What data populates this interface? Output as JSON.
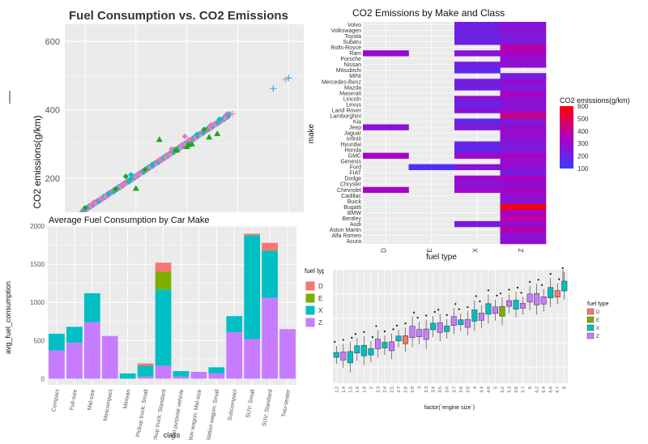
{
  "colors": {
    "panel_bg": "#ebebeb",
    "grid": "#ffffff",
    "D": "#f8766d",
    "E": "#7cae00",
    "X": "#00bfc4",
    "Z": "#c77cff",
    "scatter_green": "#1ea51e",
    "scatter_pink": "#f08cc8"
  },
  "chart_data": [
    {
      "type": "scatter",
      "title": "Fuel Consumption vs. CO2 Emissions",
      "xlabel": "",
      "ylabel": "CO2 emissions(g/km)",
      "ylim": [
        100,
        650
      ],
      "yticks": [
        "200",
        "400",
        "600"
      ],
      "grid": true,
      "series": [
        {
          "marker": "diamond",
          "points": [
            [
              5,
              113
            ],
            [
              5.8,
              128
            ],
            [
              6.6,
              140
            ],
            [
              7.3,
              155
            ],
            [
              8,
              168
            ],
            [
              8.7,
              182
            ],
            [
              9.4,
              196
            ],
            [
              10.1,
              210
            ],
            [
              10.9,
              225
            ],
            [
              11.6,
              240
            ],
            [
              12.3,
              253
            ],
            [
              13,
              268
            ],
            [
              13.8,
              283
            ],
            [
              14.5,
              298
            ],
            [
              15.2,
              312
            ],
            [
              16,
              328
            ],
            [
              16.7,
              342
            ],
            [
              17.4,
              356
            ],
            [
              18.2,
              372
            ],
            [
              18.9,
              386
            ],
            [
              9,
              205
            ],
            [
              9.5,
              210
            ],
            [
              13.5,
              285
            ],
            [
              14.8,
              322
            ]
          ]
        },
        {
          "marker": "triangle",
          "points": [
            [
              12.3,
              313
            ],
            [
              14,
              282
            ],
            [
              15,
              292
            ],
            [
              15.2,
              298
            ],
            [
              15.5,
              300
            ],
            [
              17.2,
              320
            ],
            [
              18,
              330
            ],
            [
              10,
              170
            ]
          ]
        },
        {
          "marker": "cross",
          "points": [
            [
              19,
              385
            ],
            [
              19.5,
              388
            ],
            [
              23.5,
              462
            ],
            [
              24.7,
              488
            ],
            [
              25,
              493
            ]
          ]
        }
      ]
    },
    {
      "type": "heatmap",
      "title": "CO2 Emissions by Make and Class",
      "xlabel": "fuel type",
      "ylabel": "make",
      "x": [
        "D",
        "E",
        "X",
        "Z"
      ],
      "y": [
        "Volvo",
        "Volkswagen",
        "Toyota",
        "Subaru",
        "Rolls-Royce",
        "Ram",
        "Porsche",
        "Nissan",
        "Mitsubishi",
        "MINI",
        "Mercedes-Benz",
        "Mazda",
        "Maserati",
        "Lincoln",
        "Lexus",
        "Land Rover",
        "Lamborghini",
        "Kia",
        "Jeep",
        "Jaguar",
        "Infiniti",
        "Hyundai",
        "Honda",
        "GMC",
        "Genesis",
        "Ford",
        "FIAT",
        "Dodge",
        "Chrysler",
        "Chevrolet",
        "Cadillac",
        "Buick",
        "Bugatti",
        "BMW",
        "Bentley",
        "Audi",
        "Aston Martin",
        "Alfa Romeo",
        "Acura"
      ],
      "values": [
        [
          null,
          null,
          220,
          270
        ],
        [
          null,
          null,
          210,
          260
        ],
        [
          null,
          null,
          200,
          250
        ],
        [
          null,
          null,
          210,
          240
        ],
        [
          null,
          null,
          null,
          380
        ],
        [
          290,
          null,
          270,
          340
        ],
        [
          null,
          null,
          null,
          290
        ],
        [
          null,
          null,
          220,
          280
        ],
        [
          null,
          null,
          180,
          null
        ],
        [
          null,
          null,
          null,
          220
        ],
        [
          null,
          null,
          220,
          300
        ],
        [
          null,
          null,
          210,
          240
        ],
        [
          null,
          null,
          null,
          330
        ],
        [
          null,
          null,
          280,
          290
        ],
        [
          null,
          null,
          190,
          260
        ],
        [
          null,
          null,
          270,
          300
        ],
        [
          null,
          null,
          null,
          430
        ],
        [
          null,
          null,
          180,
          240
        ],
        [
          270,
          null,
          250,
          290
        ],
        [
          null,
          null,
          null,
          300
        ],
        [
          null,
          null,
          null,
          290
        ],
        [
          null,
          null,
          190,
          240
        ],
        [
          null,
          null,
          180,
          250
        ],
        [
          330,
          null,
          310,
          330
        ],
        [
          null,
          null,
          null,
          300
        ],
        [
          null,
          150,
          260,
          290
        ],
        [
          null,
          null,
          null,
          230
        ],
        [
          null,
          null,
          310,
          340
        ],
        [
          null,
          null,
          270,
          290
        ],
        [
          330,
          null,
          310,
          320
        ],
        [
          null,
          null,
          null,
          300
        ],
        [
          null,
          null,
          null,
          260
        ],
        [
          null,
          null,
          null,
          580
        ],
        [
          null,
          null,
          null,
          330
        ],
        [
          null,
          null,
          null,
          390
        ],
        [
          null,
          null,
          230,
          290
        ],
        [
          null,
          null,
          null,
          380
        ],
        [
          null,
          null,
          null,
          270
        ],
        [
          null,
          null,
          null,
          280
        ]
      ],
      "colorbar": {
        "title": "CO2 emissions(g/km)",
        "ticks": [
          "600",
          "500",
          "400",
          "300",
          "200",
          "100"
        ],
        "range": [
          100,
          600
        ]
      }
    },
    {
      "type": "bar",
      "title": "Average Fuel Consumption by Car Make",
      "xlabel": "class",
      "ylabel": "avg_fuel_consumption",
      "ylim": [
        0,
        2000
      ],
      "yticks": [
        "0",
        "500",
        "1000",
        "1500",
        "2000"
      ],
      "categories": [
        "Compact",
        "Full-size",
        "Mid-size",
        "Minicompact",
        "Minivan",
        "Pickup truck: Small",
        "Pickup truck: Standard",
        "Special purpose vehicle",
        "Station wagon: Mid-size",
        "Station wagon: Small",
        "Subcompact",
        "SUV: Small",
        "SUV: Standard",
        "Two-seater"
      ],
      "series": [
        {
          "name": "Z",
          "values": [
            370,
            470,
            740,
            560,
            0,
            30,
            170,
            30,
            90,
            70,
            610,
            520,
            1060,
            650
          ]
        },
        {
          "name": "X",
          "values": [
            220,
            210,
            380,
            0,
            70,
            140,
            1000,
            70,
            0,
            80,
            210,
            1360,
            620,
            0
          ]
        },
        {
          "name": "E",
          "values": [
            0,
            0,
            0,
            0,
            0,
            0,
            230,
            0,
            0,
            0,
            0,
            0,
            0,
            0
          ]
        },
        {
          "name": "D",
          "values": [
            0,
            0,
            0,
            0,
            0,
            30,
            120,
            0,
            0,
            0,
            0,
            20,
            100,
            0
          ]
        }
      ],
      "legend": {
        "title": "fuel type",
        "position": "right",
        "items": [
          "D",
          "E",
          "X",
          "Z"
        ]
      }
    },
    {
      "type": "boxplot",
      "title": "",
      "xlabel": "factor(`engine size`)",
      "ylabel": "",
      "categories": [
        "1.2",
        "1.4",
        "1.5",
        "1.6",
        "1.8",
        "2",
        "2.3",
        "2.4",
        "2.5",
        "2.7",
        "2.8",
        "2.9",
        "3",
        "3.3",
        "3.4",
        "3.5",
        "3.6",
        "3.7",
        "3.8",
        "3.9",
        "4",
        "4.4",
        "4.6",
        "5",
        "5.2",
        "5.3",
        "5.6",
        "5.7",
        "6",
        "6.2",
        "6.4",
        "6.6",
        "6.7",
        "8"
      ],
      "legend": {
        "title": "fuel type",
        "position": "right",
        "items": [
          "D",
          "E",
          "X",
          "Z"
        ]
      }
    }
  ]
}
